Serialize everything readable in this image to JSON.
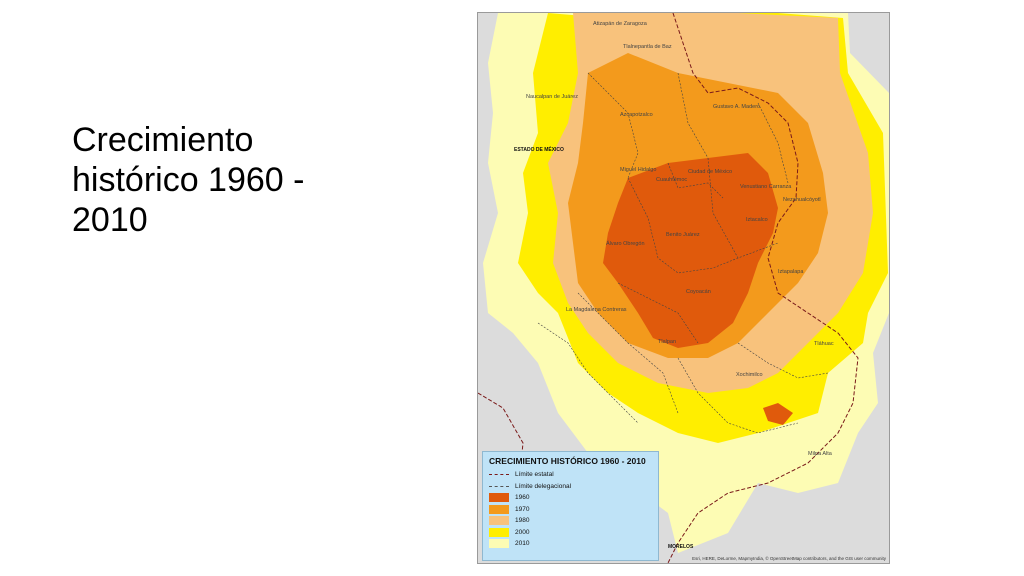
{
  "slide": {
    "title": "Crecimiento histórico 1960 - 2010"
  },
  "map": {
    "labels": {
      "atizapan": "Atizapán de Zaragoza",
      "tlalnepantla": "Tlalnepantla de Baz",
      "naucalpan": "Naucalpan de Juárez",
      "gustavo": "Gustavo A. Madero",
      "azcapotzalco": "Azcapotzalco",
      "estado": "ESTADO DE MÉXICO",
      "cuauhtemoc": "Cuauhtémoc",
      "ciudad": "Ciudad de México",
      "miguel": "Miguel Hidalgo",
      "venustiano": "Venustiano Carranza",
      "benito": "Benito Juárez",
      "iztacalco": "Iztacalco",
      "alvaro": "Álvaro Obregón",
      "iztapalapa": "Iztapalapa",
      "coyoacan": "Coyoacán",
      "magdalena": "La Magdalena Contreras",
      "tlalpan": "Tlalpan",
      "tlahuac": "Tláhuac",
      "xochimilco": "Xochimilco",
      "milpa": "Milpa Alta",
      "morelos": "MORELOS",
      "nezahualcoyotl": "Nezahualcóyotl"
    },
    "legend": {
      "title": "CRECIMIENTO HISTÓRICO 1960 - 2010",
      "estatal": "Límite estatal",
      "delegacional": "Límite delegacional",
      "items": [
        {
          "label": "1960",
          "color": "#e05a0c"
        },
        {
          "label": "1970",
          "color": "#f39a1c"
        },
        {
          "label": "1980",
          "color": "#f8c27c"
        },
        {
          "label": "2000",
          "color": "#ffee00"
        },
        {
          "label": "2010",
          "color": "#fdfcb4"
        }
      ]
    },
    "attribution": "Esri, HERE, DeLorme, MapmyIndia, © OpenStreetMap contributors, and the GIS user community",
    "colors": {
      "background": "#dcdcdc",
      "water": "#bfe3f7",
      "boundary": "#7a1a1a"
    }
  }
}
